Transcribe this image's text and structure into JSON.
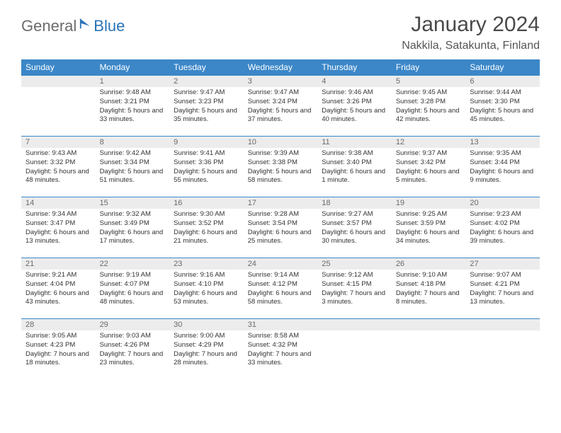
{
  "brand": {
    "general": "General",
    "blue": "Blue"
  },
  "title": "January 2024",
  "location": "Nakkila, Satakunta, Finland",
  "colors": {
    "header_bg": "#3b87c8",
    "header_text": "#ffffff",
    "daynum_bg": "#ececec",
    "daynum_text": "#6a6a6a",
    "border": "#3b87c8",
    "body_text": "#333333"
  },
  "weekdays": [
    "Sunday",
    "Monday",
    "Tuesday",
    "Wednesday",
    "Thursday",
    "Friday",
    "Saturday"
  ],
  "first_weekday_index": 1,
  "days_in_month": 31,
  "days": {
    "1": {
      "sunrise": "9:48 AM",
      "sunset": "3:21 PM",
      "daylight": "5 hours and 33 minutes."
    },
    "2": {
      "sunrise": "9:47 AM",
      "sunset": "3:23 PM",
      "daylight": "5 hours and 35 minutes."
    },
    "3": {
      "sunrise": "9:47 AM",
      "sunset": "3:24 PM",
      "daylight": "5 hours and 37 minutes."
    },
    "4": {
      "sunrise": "9:46 AM",
      "sunset": "3:26 PM",
      "daylight": "5 hours and 40 minutes."
    },
    "5": {
      "sunrise": "9:45 AM",
      "sunset": "3:28 PM",
      "daylight": "5 hours and 42 minutes."
    },
    "6": {
      "sunrise": "9:44 AM",
      "sunset": "3:30 PM",
      "daylight": "5 hours and 45 minutes."
    },
    "7": {
      "sunrise": "9:43 AM",
      "sunset": "3:32 PM",
      "daylight": "5 hours and 48 minutes."
    },
    "8": {
      "sunrise": "9:42 AM",
      "sunset": "3:34 PM",
      "daylight": "5 hours and 51 minutes."
    },
    "9": {
      "sunrise": "9:41 AM",
      "sunset": "3:36 PM",
      "daylight": "5 hours and 55 minutes."
    },
    "10": {
      "sunrise": "9:39 AM",
      "sunset": "3:38 PM",
      "daylight": "5 hours and 58 minutes."
    },
    "11": {
      "sunrise": "9:38 AM",
      "sunset": "3:40 PM",
      "daylight": "6 hours and 1 minute."
    },
    "12": {
      "sunrise": "9:37 AM",
      "sunset": "3:42 PM",
      "daylight": "6 hours and 5 minutes."
    },
    "13": {
      "sunrise": "9:35 AM",
      "sunset": "3:44 PM",
      "daylight": "6 hours and 9 minutes."
    },
    "14": {
      "sunrise": "9:34 AM",
      "sunset": "3:47 PM",
      "daylight": "6 hours and 13 minutes."
    },
    "15": {
      "sunrise": "9:32 AM",
      "sunset": "3:49 PM",
      "daylight": "6 hours and 17 minutes."
    },
    "16": {
      "sunrise": "9:30 AM",
      "sunset": "3:52 PM",
      "daylight": "6 hours and 21 minutes."
    },
    "17": {
      "sunrise": "9:28 AM",
      "sunset": "3:54 PM",
      "daylight": "6 hours and 25 minutes."
    },
    "18": {
      "sunrise": "9:27 AM",
      "sunset": "3:57 PM",
      "daylight": "6 hours and 30 minutes."
    },
    "19": {
      "sunrise": "9:25 AM",
      "sunset": "3:59 PM",
      "daylight": "6 hours and 34 minutes."
    },
    "20": {
      "sunrise": "9:23 AM",
      "sunset": "4:02 PM",
      "daylight": "6 hours and 39 minutes."
    },
    "21": {
      "sunrise": "9:21 AM",
      "sunset": "4:04 PM",
      "daylight": "6 hours and 43 minutes."
    },
    "22": {
      "sunrise": "9:19 AM",
      "sunset": "4:07 PM",
      "daylight": "6 hours and 48 minutes."
    },
    "23": {
      "sunrise": "9:16 AM",
      "sunset": "4:10 PM",
      "daylight": "6 hours and 53 minutes."
    },
    "24": {
      "sunrise": "9:14 AM",
      "sunset": "4:12 PM",
      "daylight": "6 hours and 58 minutes."
    },
    "25": {
      "sunrise": "9:12 AM",
      "sunset": "4:15 PM",
      "daylight": "7 hours and 3 minutes."
    },
    "26": {
      "sunrise": "9:10 AM",
      "sunset": "4:18 PM",
      "daylight": "7 hours and 8 minutes."
    },
    "27": {
      "sunrise": "9:07 AM",
      "sunset": "4:21 PM",
      "daylight": "7 hours and 13 minutes."
    },
    "28": {
      "sunrise": "9:05 AM",
      "sunset": "4:23 PM",
      "daylight": "7 hours and 18 minutes."
    },
    "29": {
      "sunrise": "9:03 AM",
      "sunset": "4:26 PM",
      "daylight": "7 hours and 23 minutes."
    },
    "30": {
      "sunrise": "9:00 AM",
      "sunset": "4:29 PM",
      "daylight": "7 hours and 28 minutes."
    },
    "31": {
      "sunrise": "8:58 AM",
      "sunset": "4:32 PM",
      "daylight": "7 hours and 33 minutes."
    }
  },
  "labels": {
    "sunrise": "Sunrise:",
    "sunset": "Sunset:",
    "daylight": "Daylight:"
  }
}
